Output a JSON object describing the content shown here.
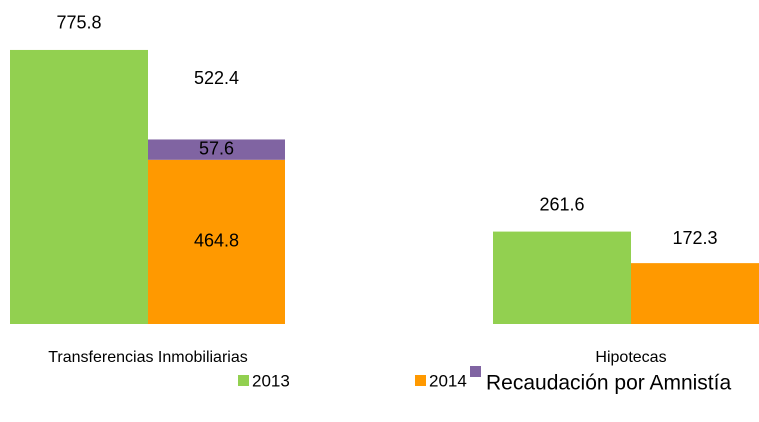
{
  "chart_data": {
    "type": "bar",
    "categories": [
      "Transferencias Inmobiliarias",
      "Hipotecas"
    ],
    "series": [
      {
        "name": "2013",
        "color": "#92d050",
        "values": [
          775.8,
          261.6
        ]
      },
      {
        "name": "2014",
        "color": "#ff9900",
        "values": [
          464.8,
          172.3
        ]
      },
      {
        "name": "Recaudación por Amnistía",
        "color": "#8064a2",
        "values": [
          57.6,
          null
        ]
      }
    ],
    "totals": [
      522.4,
      null
    ],
    "ylim": [
      0,
      800
    ]
  }
}
